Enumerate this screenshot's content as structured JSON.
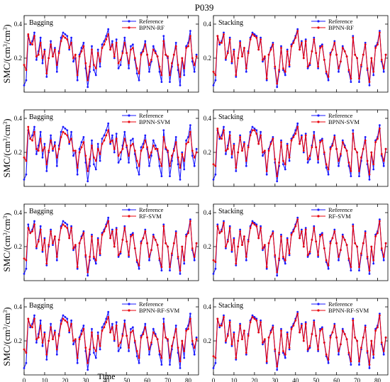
{
  "figure": {
    "title": "P039",
    "xlabel": "Time",
    "ylabel_prefix": "SMC/(cm",
    "ylabel_mid": "/cm",
    "ylabel_suffix": ")",
    "ylabel_sup": "3"
  },
  "colors": {
    "reference": "#1a1aff",
    "model": "#e8000b"
  },
  "chart_data": {
    "type": "line",
    "xlim": [
      0,
      85
    ],
    "ylim": [
      0,
      0.45
    ],
    "x_ticks": [
      0,
      10,
      20,
      30,
      40,
      50,
      60,
      70,
      80
    ],
    "y_ticks": [
      0.2,
      0.4
    ],
    "grid": false,
    "legend_position": "top-right",
    "x": [
      0,
      1,
      2,
      3,
      4,
      5,
      6,
      7,
      8,
      9,
      10,
      11,
      12,
      13,
      14,
      15,
      16,
      17,
      18,
      19,
      20,
      21,
      22,
      23,
      24,
      25,
      26,
      27,
      28,
      29,
      30,
      31,
      32,
      33,
      34,
      35,
      36,
      37,
      38,
      39,
      40,
      41,
      42,
      43,
      44,
      45,
      46,
      47,
      48,
      49,
      50,
      51,
      52,
      53,
      54,
      55,
      56,
      57,
      58,
      59,
      60,
      61,
      62,
      63,
      64,
      65,
      66,
      67,
      68,
      69,
      70,
      71,
      72,
      73,
      74,
      75,
      76,
      77,
      78,
      79,
      80,
      81,
      82,
      83,
      84
    ],
    "reference": [
      0.04,
      0.07,
      0.33,
      0.28,
      0.3,
      0.35,
      0.19,
      0.24,
      0.32,
      0.17,
      0.25,
      0.09,
      0.2,
      0.3,
      0.21,
      0.26,
      0.12,
      0.24,
      0.32,
      0.35,
      0.34,
      0.33,
      0.25,
      0.32,
      0.18,
      0.2,
      0.07,
      0.22,
      0.26,
      0.29,
      0.14,
      0.03,
      0.12,
      0.27,
      0.13,
      0.1,
      0.25,
      0.15,
      0.28,
      0.3,
      0.33,
      0.37,
      0.25,
      0.3,
      0.2,
      0.31,
      0.14,
      0.16,
      0.24,
      0.32,
      0.23,
      0.14,
      0.27,
      0.28,
      0.19,
      0.11,
      0.07,
      0.23,
      0.25,
      0.3,
      0.22,
      0.12,
      0.18,
      0.27,
      0.24,
      0.21,
      0.12,
      0.06,
      0.33,
      0.22,
      0.2,
      0.06,
      0.15,
      0.22,
      0.29,
      0.13,
      0.04,
      0.2,
      0.1,
      0.27,
      0.29,
      0.36,
      0.18,
      0.12,
      0.22
    ],
    "panels": [
      {
        "method": "Bagging",
        "model": "BPNN-RF",
        "values": [
          0.16,
          0.13,
          0.34,
          0.29,
          0.28,
          0.33,
          0.21,
          0.22,
          0.29,
          0.2,
          0.24,
          0.11,
          0.2,
          0.28,
          0.21,
          0.25,
          0.16,
          0.23,
          0.3,
          0.33,
          0.32,
          0.31,
          0.26,
          0.29,
          0.2,
          0.22,
          0.1,
          0.21,
          0.24,
          0.27,
          0.17,
          0.07,
          0.15,
          0.25,
          0.16,
          0.14,
          0.23,
          0.18,
          0.26,
          0.28,
          0.31,
          0.34,
          0.25,
          0.28,
          0.21,
          0.29,
          0.17,
          0.19,
          0.23,
          0.29,
          0.23,
          0.17,
          0.25,
          0.26,
          0.2,
          0.14,
          0.11,
          0.22,
          0.24,
          0.28,
          0.22,
          0.16,
          0.19,
          0.25,
          0.23,
          0.21,
          0.15,
          0.1,
          0.3,
          0.22,
          0.21,
          0.1,
          0.17,
          0.22,
          0.27,
          0.16,
          0.09,
          0.2,
          0.14,
          0.26,
          0.27,
          0.33,
          0.2,
          0.16,
          0.21
        ]
      },
      {
        "method": "Stacking",
        "model": "BPNN-RF",
        "values": [
          0.12,
          0.1,
          0.33,
          0.29,
          0.29,
          0.34,
          0.2,
          0.23,
          0.31,
          0.18,
          0.24,
          0.1,
          0.2,
          0.29,
          0.21,
          0.26,
          0.14,
          0.23,
          0.31,
          0.34,
          0.33,
          0.32,
          0.25,
          0.31,
          0.19,
          0.21,
          0.08,
          0.22,
          0.25,
          0.28,
          0.15,
          0.05,
          0.13,
          0.26,
          0.14,
          0.12,
          0.24,
          0.16,
          0.27,
          0.29,
          0.32,
          0.36,
          0.25,
          0.29,
          0.2,
          0.3,
          0.15,
          0.17,
          0.24,
          0.31,
          0.23,
          0.15,
          0.26,
          0.27,
          0.19,
          0.12,
          0.09,
          0.22,
          0.25,
          0.29,
          0.22,
          0.14,
          0.18,
          0.26,
          0.24,
          0.21,
          0.13,
          0.08,
          0.32,
          0.22,
          0.2,
          0.08,
          0.16,
          0.22,
          0.28,
          0.14,
          0.06,
          0.2,
          0.12,
          0.26,
          0.28,
          0.35,
          0.19,
          0.14,
          0.22
        ]
      },
      {
        "method": "Bagging",
        "model": "BPNN-SVM",
        "values": [
          0.17,
          0.15,
          0.35,
          0.28,
          0.27,
          0.32,
          0.22,
          0.21,
          0.28,
          0.21,
          0.23,
          0.13,
          0.21,
          0.27,
          0.22,
          0.24,
          0.17,
          0.22,
          0.29,
          0.32,
          0.31,
          0.3,
          0.26,
          0.28,
          0.21,
          0.21,
          0.11,
          0.2,
          0.23,
          0.26,
          0.18,
          0.09,
          0.16,
          0.24,
          0.17,
          0.15,
          0.22,
          0.19,
          0.25,
          0.27,
          0.3,
          0.33,
          0.26,
          0.27,
          0.22,
          0.28,
          0.18,
          0.2,
          0.22,
          0.28,
          0.24,
          0.18,
          0.24,
          0.25,
          0.21,
          0.15,
          0.12,
          0.21,
          0.23,
          0.27,
          0.23,
          0.17,
          0.2,
          0.24,
          0.22,
          0.22,
          0.16,
          0.12,
          0.29,
          0.23,
          0.21,
          0.12,
          0.18,
          0.21,
          0.26,
          0.17,
          0.11,
          0.19,
          0.15,
          0.25,
          0.26,
          0.32,
          0.21,
          0.17,
          0.2
        ]
      },
      {
        "method": "Stacking",
        "model": "BPNN-SVM",
        "values": [
          0.13,
          0.12,
          0.34,
          0.29,
          0.28,
          0.33,
          0.21,
          0.22,
          0.3,
          0.19,
          0.24,
          0.11,
          0.2,
          0.29,
          0.21,
          0.25,
          0.15,
          0.23,
          0.3,
          0.33,
          0.33,
          0.31,
          0.25,
          0.3,
          0.2,
          0.21,
          0.09,
          0.21,
          0.25,
          0.28,
          0.16,
          0.06,
          0.14,
          0.26,
          0.15,
          0.13,
          0.24,
          0.17,
          0.27,
          0.29,
          0.31,
          0.35,
          0.25,
          0.29,
          0.21,
          0.3,
          0.16,
          0.18,
          0.23,
          0.3,
          0.23,
          0.16,
          0.26,
          0.27,
          0.2,
          0.13,
          0.1,
          0.22,
          0.24,
          0.29,
          0.22,
          0.15,
          0.19,
          0.26,
          0.23,
          0.21,
          0.14,
          0.09,
          0.31,
          0.22,
          0.2,
          0.09,
          0.17,
          0.22,
          0.27,
          0.15,
          0.07,
          0.2,
          0.13,
          0.26,
          0.28,
          0.34,
          0.19,
          0.15,
          0.22
        ]
      },
      {
        "method": "Bagging",
        "model": "RF-SVM",
        "values": [
          0.13,
          0.12,
          0.31,
          0.28,
          0.29,
          0.33,
          0.2,
          0.23,
          0.3,
          0.18,
          0.24,
          0.1,
          0.21,
          0.29,
          0.22,
          0.26,
          0.14,
          0.24,
          0.31,
          0.33,
          0.32,
          0.31,
          0.25,
          0.31,
          0.19,
          0.21,
          0.08,
          0.22,
          0.25,
          0.28,
          0.15,
          0.05,
          0.14,
          0.26,
          0.14,
          0.12,
          0.24,
          0.16,
          0.27,
          0.29,
          0.32,
          0.35,
          0.25,
          0.29,
          0.2,
          0.3,
          0.15,
          0.17,
          0.24,
          0.31,
          0.23,
          0.15,
          0.26,
          0.27,
          0.19,
          0.12,
          0.09,
          0.22,
          0.25,
          0.29,
          0.22,
          0.14,
          0.18,
          0.26,
          0.24,
          0.21,
          0.13,
          0.08,
          0.32,
          0.22,
          0.2,
          0.08,
          0.16,
          0.22,
          0.28,
          0.14,
          0.06,
          0.2,
          0.12,
          0.26,
          0.28,
          0.35,
          0.19,
          0.14,
          0.22
        ]
      },
      {
        "method": "Stacking",
        "model": "RF-SVM",
        "values": [
          0.12,
          0.11,
          0.32,
          0.28,
          0.29,
          0.34,
          0.2,
          0.23,
          0.31,
          0.18,
          0.24,
          0.1,
          0.2,
          0.29,
          0.21,
          0.26,
          0.14,
          0.23,
          0.31,
          0.34,
          0.33,
          0.32,
          0.25,
          0.31,
          0.19,
          0.21,
          0.08,
          0.22,
          0.26,
          0.28,
          0.15,
          0.05,
          0.13,
          0.26,
          0.14,
          0.12,
          0.24,
          0.16,
          0.27,
          0.29,
          0.32,
          0.36,
          0.25,
          0.29,
          0.2,
          0.3,
          0.15,
          0.17,
          0.24,
          0.31,
          0.23,
          0.15,
          0.26,
          0.27,
          0.19,
          0.12,
          0.09,
          0.22,
          0.25,
          0.29,
          0.22,
          0.14,
          0.18,
          0.26,
          0.24,
          0.21,
          0.13,
          0.08,
          0.32,
          0.22,
          0.2,
          0.08,
          0.16,
          0.22,
          0.28,
          0.14,
          0.06,
          0.2,
          0.12,
          0.26,
          0.28,
          0.35,
          0.19,
          0.14,
          0.22
        ]
      },
      {
        "method": "Bagging",
        "model": "BPNN-RF-SVM",
        "values": [
          0.15,
          0.13,
          0.33,
          0.29,
          0.28,
          0.33,
          0.21,
          0.22,
          0.29,
          0.19,
          0.24,
          0.12,
          0.2,
          0.28,
          0.21,
          0.25,
          0.15,
          0.23,
          0.3,
          0.33,
          0.32,
          0.31,
          0.26,
          0.3,
          0.2,
          0.21,
          0.1,
          0.21,
          0.24,
          0.27,
          0.16,
          0.07,
          0.15,
          0.25,
          0.16,
          0.14,
          0.23,
          0.17,
          0.26,
          0.28,
          0.31,
          0.34,
          0.25,
          0.28,
          0.21,
          0.29,
          0.17,
          0.19,
          0.23,
          0.3,
          0.23,
          0.16,
          0.25,
          0.26,
          0.2,
          0.14,
          0.1,
          0.22,
          0.24,
          0.28,
          0.22,
          0.15,
          0.19,
          0.25,
          0.23,
          0.21,
          0.14,
          0.1,
          0.3,
          0.22,
          0.21,
          0.1,
          0.17,
          0.22,
          0.27,
          0.16,
          0.08,
          0.2,
          0.14,
          0.26,
          0.27,
          0.33,
          0.2,
          0.16,
          0.21
        ]
      },
      {
        "method": "Stacking",
        "model": "BPNN-RF-SVM",
        "values": [
          0.11,
          0.1,
          0.33,
          0.29,
          0.29,
          0.34,
          0.2,
          0.23,
          0.31,
          0.18,
          0.24,
          0.1,
          0.2,
          0.29,
          0.21,
          0.26,
          0.13,
          0.23,
          0.31,
          0.34,
          0.33,
          0.32,
          0.25,
          0.31,
          0.19,
          0.21,
          0.08,
          0.22,
          0.25,
          0.28,
          0.15,
          0.05,
          0.13,
          0.26,
          0.14,
          0.12,
          0.24,
          0.16,
          0.27,
          0.29,
          0.32,
          0.36,
          0.25,
          0.29,
          0.2,
          0.3,
          0.15,
          0.17,
          0.24,
          0.31,
          0.23,
          0.15,
          0.26,
          0.27,
          0.19,
          0.12,
          0.09,
          0.22,
          0.25,
          0.29,
          0.22,
          0.14,
          0.18,
          0.26,
          0.24,
          0.21,
          0.13,
          0.08,
          0.32,
          0.22,
          0.2,
          0.08,
          0.16,
          0.22,
          0.28,
          0.14,
          0.06,
          0.2,
          0.12,
          0.26,
          0.28,
          0.35,
          0.19,
          0.14,
          0.22
        ]
      }
    ],
    "legend_reference": "Reference"
  }
}
